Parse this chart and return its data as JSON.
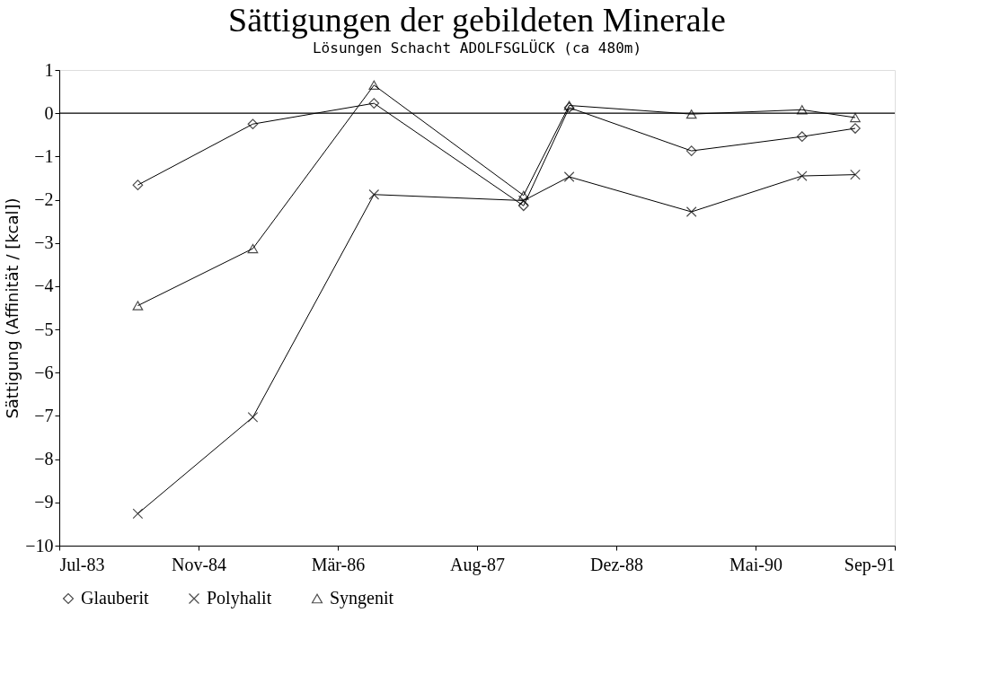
{
  "chart_data": {
    "type": "line",
    "title": "Sättigungen der gebildeten Minerale",
    "subtitle": "Lösungen Schacht ADOLFSGLÜCK (ca 480m)",
    "ylabel": "Sättigung (Affinität / [kcal])",
    "x": [
      "1984-04-08",
      "1985-05-26",
      "1986-08-04",
      "1988-01-23",
      "1988-07-05",
      "1989-09-17",
      "1990-10-19",
      "1991-04-28"
    ],
    "series": [
      {
        "name": "Glauberit",
        "color": "#000000",
        "marker": "diamond",
        "values": [
          -1.66,
          -0.25,
          0.23,
          -2.14,
          0.13,
          -0.87,
          -0.54,
          -0.35
        ]
      },
      {
        "name": "Polyhalit",
        "color": "#000000",
        "marker": "cross",
        "values": [
          -9.26,
          -7.03,
          -1.88,
          -2.02,
          -1.47,
          -2.28,
          -1.45,
          -1.42
        ]
      },
      {
        "name": "Syngenit",
        "color": "#000000",
        "marker": "triangle",
        "values": [
          -4.45,
          -3.13,
          0.65,
          -1.9,
          0.18,
          -0.02,
          0.08,
          -0.1
        ]
      }
    ],
    "xlim": [
      "1983-07-01",
      "1991-09-17"
    ],
    "xticks": [
      {
        "value": "1983-07-01",
        "label": "Jul-83"
      },
      {
        "value": "1984-11-12",
        "label": "Nov-84"
      },
      {
        "value": "1986-03-27",
        "label": "Mär-86"
      },
      {
        "value": "1987-08-09",
        "label": "Aug-87"
      },
      {
        "value": "1988-12-21",
        "label": "Dez-88"
      },
      {
        "value": "1990-05-05",
        "label": "Mai-90"
      },
      {
        "value": "1991-09-17",
        "label": "Sep-91"
      }
    ],
    "ylim": [
      -10,
      1
    ],
    "yticks": [
      -10,
      -9,
      -8,
      -7,
      -6,
      -5,
      -4,
      -3,
      -2,
      -1,
      0,
      1
    ],
    "ref_lines": [
      {
        "axis": "y",
        "value": 0,
        "color": "#000000",
        "line_style": "solid"
      }
    ],
    "grid": false,
    "legend": "bottom",
    "line_style": "solid"
  }
}
